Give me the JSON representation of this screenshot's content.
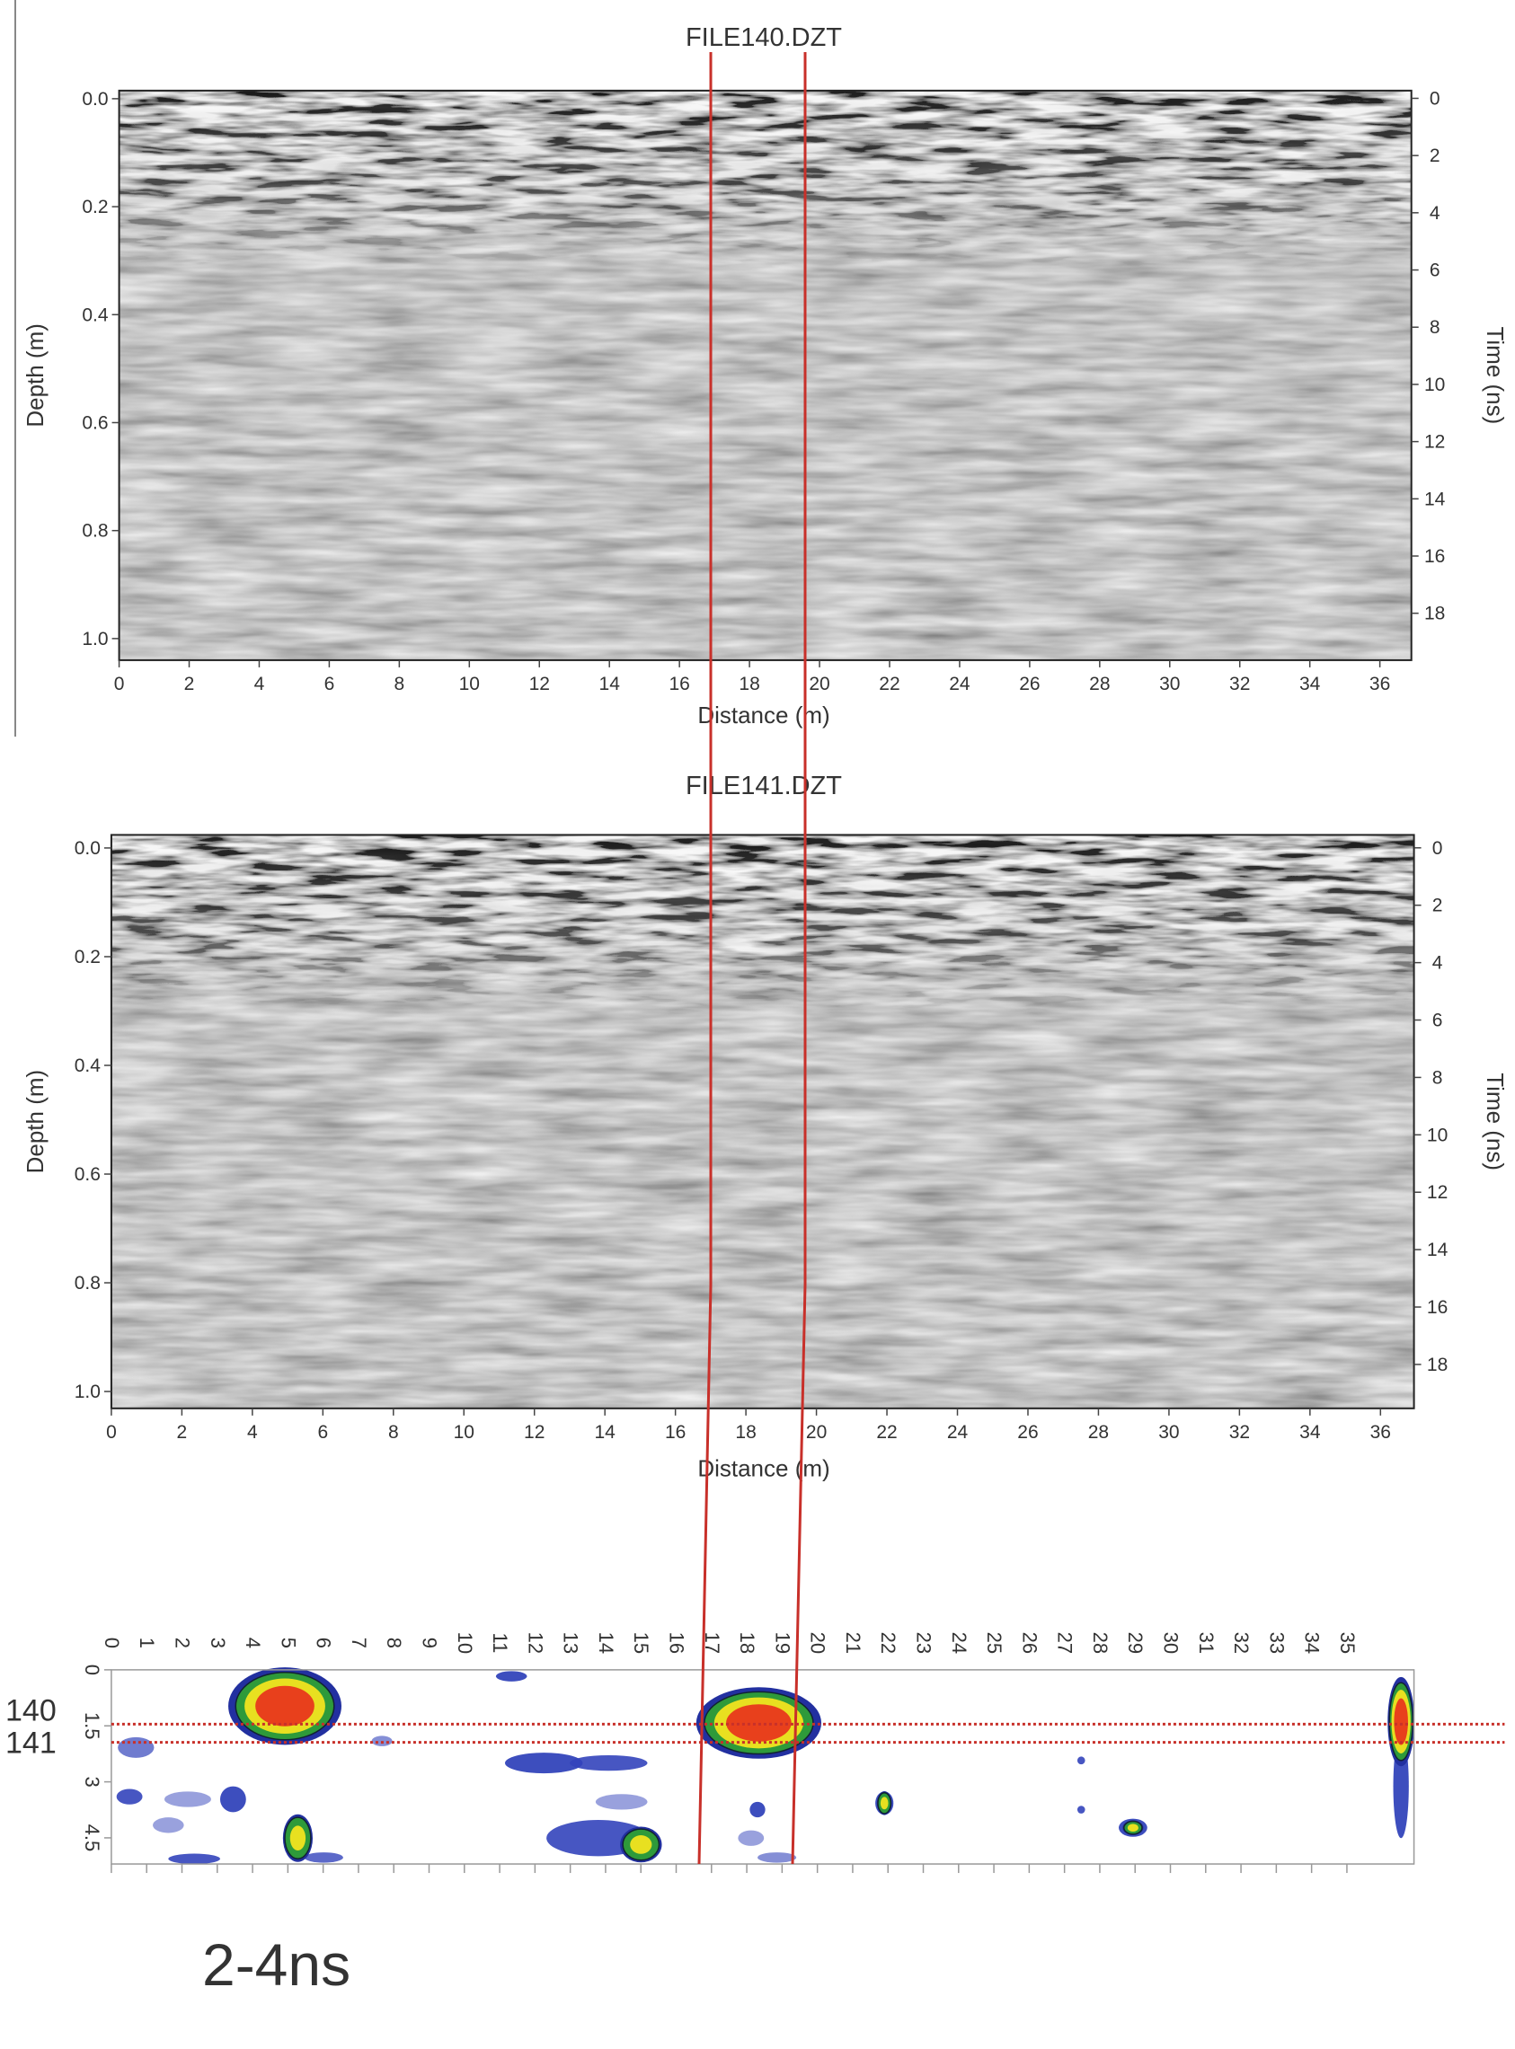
{
  "chart_data": [
    {
      "type": "radargram",
      "title": "FILE140.DZT",
      "x_label": "Distance (m)",
      "y_label": "Depth (m)",
      "y2_label": "Time (ns)",
      "xlim": [
        0,
        36.9
      ],
      "xticks": [
        0,
        2,
        4,
        6,
        8,
        10,
        12,
        14,
        16,
        18,
        20,
        22,
        24,
        26,
        28,
        30,
        32,
        34,
        36
      ],
      "ylim": [
        -0.015,
        1.04
      ],
      "yticks": [
        {
          "value": 0,
          "label": "0.0"
        },
        {
          "value": 0.2,
          "label": "0.2"
        },
        {
          "value": 0.4,
          "label": "0.4"
        },
        {
          "value": 0.6,
          "label": "0.6"
        },
        {
          "value": 0.8,
          "label": "0.8"
        },
        {
          "value": 1,
          "label": "1.0"
        }
      ],
      "y2lim": [
        -0.27,
        19.64
      ],
      "y2ticks": [
        0,
        2,
        4,
        6,
        8,
        10,
        12,
        14,
        16,
        18
      ]
    },
    {
      "type": "radargram",
      "title": "FILE141.DZT",
      "x_label": "Distance (m)",
      "y_label": "Depth (m)",
      "y2_label": "Time (ns)",
      "xlim": [
        0,
        36.95
      ],
      "xticks": [
        0,
        2,
        4,
        6,
        8,
        10,
        12,
        14,
        16,
        18,
        20,
        22,
        24,
        26,
        28,
        30,
        32,
        34,
        36
      ],
      "ylim": [
        -0.024,
        1.031
      ],
      "yticks": [
        {
          "value": 0,
          "label": "0.0"
        },
        {
          "value": 0.2,
          "label": "0.2"
        },
        {
          "value": 0.4,
          "label": "0.4"
        },
        {
          "value": 0.6,
          "label": "0.6"
        },
        {
          "value": 0.8,
          "label": "0.8"
        },
        {
          "value": 1,
          "label": "1.0"
        }
      ],
      "y2lim": [
        -0.45,
        19.53
      ],
      "y2ticks": [
        0,
        2,
        4,
        6,
        8,
        10,
        12,
        14,
        16,
        18
      ]
    },
    {
      "type": "depth-slice",
      "line_labels": [
        "140",
        "141"
      ],
      "caption": "2-4ns",
      "xlim": [
        0,
        36.9
      ],
      "xticks": [
        0,
        1,
        2,
        3,
        4,
        5,
        6,
        7,
        8,
        9,
        10,
        11,
        12,
        13,
        14,
        15,
        16,
        17,
        18,
        19,
        20,
        21,
        22,
        23,
        24,
        25,
        26,
        27,
        28,
        29,
        30,
        31,
        32,
        33,
        34,
        35
      ],
      "ylim": [
        0,
        5.2
      ],
      "yticks": [
        0,
        1.5,
        3,
        4.5
      ]
    }
  ]
}
